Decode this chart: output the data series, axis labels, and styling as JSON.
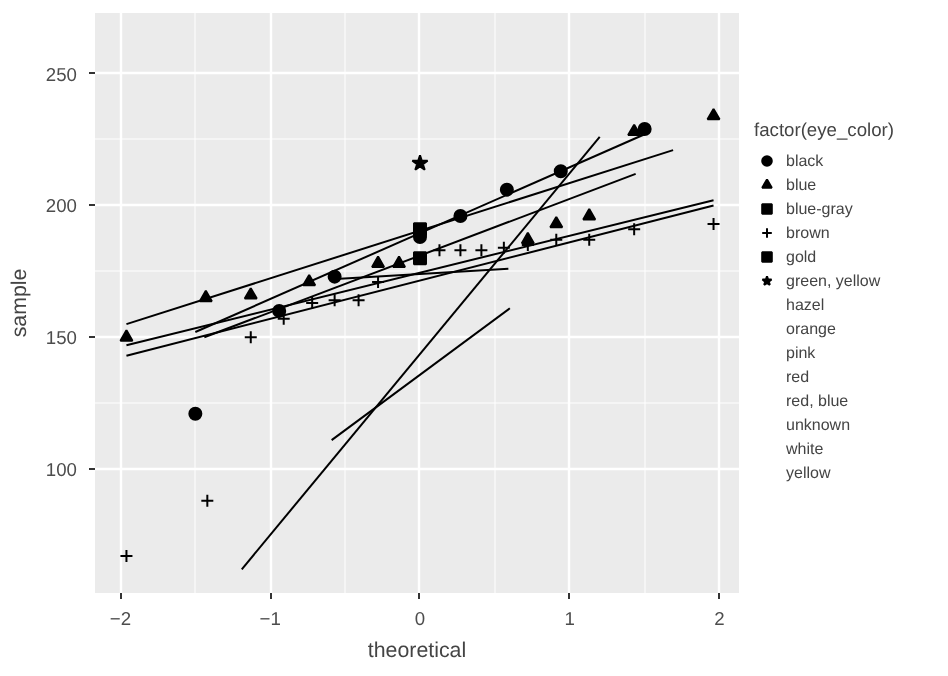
{
  "chart_data": {
    "type": "scatter",
    "xlabel": "theoretical",
    "ylabel": "sample",
    "legend_title": "factor(eye_color)",
    "xlim": [
      -2.17,
      2.13
    ],
    "ylim": [
      53,
      273
    ],
    "xticks": [
      -2,
      -1,
      0,
      1,
      2
    ],
    "yticks": [
      100,
      150,
      200,
      250
    ],
    "grid": true,
    "legend": "right",
    "series": [
      {
        "name": "black",
        "color": "#000000",
        "marker": "circle",
        "x": [
          -1.5,
          -0.94,
          -0.57,
          0,
          0.27,
          0.58,
          0.94,
          1.5
        ],
        "values": [
          121,
          160,
          173,
          188,
          196,
          206,
          213,
          229
        ]
      },
      {
        "name": "blue",
        "color": "#000000",
        "marker": "triangle",
        "x": [
          -1.96,
          -1.43,
          -1.13,
          -0.74,
          -0.28,
          -0.14,
          0.72,
          0.91,
          1.13,
          1.43,
          1.96
        ],
        "values": [
          150,
          165,
          166,
          171,
          178,
          178,
          187,
          193,
          196,
          228,
          234
        ]
      },
      {
        "name": "blue-gray",
        "color": "#000000",
        "marker": "square",
        "x": [
          0
        ],
        "values": [
          180
        ]
      },
      {
        "name": "brown",
        "color": "#000000",
        "marker": "cross",
        "x": [
          -1.96,
          -1.42,
          -1.13,
          -0.91,
          -0.72,
          -0.57,
          -0.41,
          -0.28,
          0.13,
          0.27,
          0.41,
          0.56,
          0.72,
          0.91,
          1.13,
          1.43,
          1.96
        ],
        "values": [
          67,
          88,
          150,
          157,
          163,
          164,
          164,
          171,
          183,
          183,
          183,
          184,
          185,
          187,
          187,
          191,
          193
        ]
      },
      {
        "name": "gold",
        "color": "#000000",
        "marker": "square",
        "x": [
          0
        ],
        "values": [
          191
        ]
      },
      {
        "name": "green, yellow",
        "color": "#000000",
        "marker": "star",
        "x": [
          0
        ],
        "values": [
          216
        ]
      },
      {
        "name": "hazel",
        "marker": "none"
      },
      {
        "name": "orange",
        "marker": "none"
      },
      {
        "name": "pink",
        "marker": "none"
      },
      {
        "name": "red",
        "marker": "none"
      },
      {
        "name": "red, blue",
        "marker": "none"
      },
      {
        "name": "unknown",
        "marker": "none"
      },
      {
        "name": "white",
        "marker": "none"
      },
      {
        "name": "yellow",
        "marker": "none"
      },
      {
        "type": "line",
        "color": "#000000",
        "x": [
          -1.19,
          1.2
        ],
        "values": [
          62,
          226
        ]
      },
      {
        "type": "line",
        "color": "#000000",
        "x": [
          -0.59,
          0.6
        ],
        "values": [
          111,
          161
        ]
      },
      {
        "type": "line",
        "color": "#000000",
        "x": [
          -1.5,
          1.5
        ],
        "values": [
          152,
          227
        ]
      },
      {
        "type": "line",
        "color": "#000000",
        "x": [
          -1.96,
          1.69
        ],
        "values": [
          155,
          221
        ]
      },
      {
        "type": "line",
        "color": "#000000",
        "x": [
          -1.44,
          1.44
        ],
        "values": [
          150,
          212
        ]
      },
      {
        "type": "line",
        "color": "#000000",
        "x": [
          -1.96,
          1.96
        ],
        "values": [
          147,
          202
        ]
      },
      {
        "type": "line",
        "color": "#000000",
        "x": [
          -1.96,
          1.96
        ],
        "values": [
          143,
          200
        ]
      },
      {
        "type": "line",
        "color": "#000000",
        "x": [
          -0.59,
          0.59
        ],
        "values": [
          172,
          176
        ]
      }
    ]
  }
}
